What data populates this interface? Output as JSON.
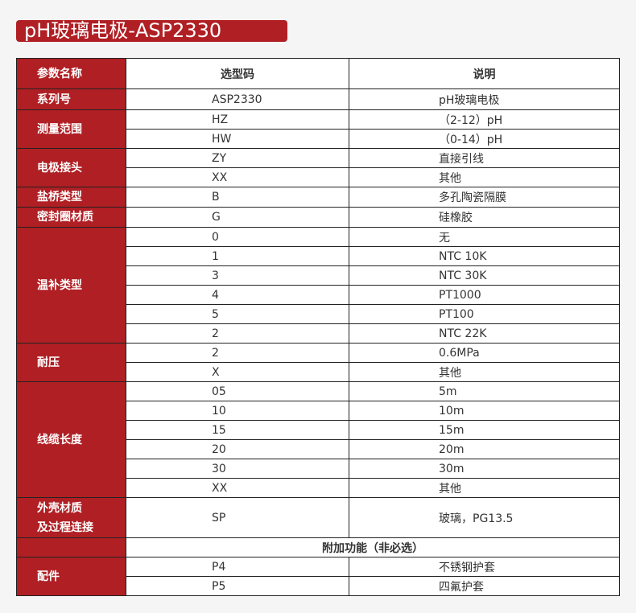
{
  "title": "pH玻璃电极-ASP2330",
  "header": {
    "param": "参数名称",
    "code": "选型码",
    "desc": "说明"
  },
  "series": {
    "label": "系列号",
    "code": "ASP2330",
    "desc": "pH玻璃电极"
  },
  "range": {
    "label": "测量范围",
    "rows": [
      [
        "HZ",
        "（2-12）pH"
      ],
      [
        "HW",
        "（0-14）pH"
      ]
    ]
  },
  "connector": {
    "label": "电极接头",
    "rows": [
      [
        "ZY",
        "直接引线"
      ],
      [
        "XX",
        "其他"
      ]
    ]
  },
  "bridge": {
    "label": "盐桥类型",
    "code": "B",
    "desc": "多孔陶瓷隔膜"
  },
  "seal": {
    "label": "密封圈材质",
    "code": "G",
    "desc": "硅橡胶"
  },
  "temp": {
    "label": "温补类型",
    "rows": [
      [
        "0",
        "无"
      ],
      [
        "1",
        "NTC 10K"
      ],
      [
        "3",
        "NTC 30K"
      ],
      [
        "4",
        "PT1000"
      ],
      [
        "5",
        "PT100"
      ],
      [
        "2",
        "NTC 22K"
      ]
    ]
  },
  "pressure": {
    "label": "耐压",
    "rows": [
      [
        "2",
        "0.6MPa"
      ],
      [
        "X",
        "其他"
      ]
    ]
  },
  "cable": {
    "label": "线缆长度",
    "rows": [
      [
        "05",
        "5m"
      ],
      [
        "10",
        "10m"
      ],
      [
        "15",
        "15m"
      ],
      [
        "20",
        "20m"
      ],
      [
        "30",
        "30m"
      ],
      [
        "XX",
        "其他"
      ]
    ]
  },
  "shell": {
    "label_line1": "外壳材质",
    "label_line2": "及过程连接",
    "code": "SP",
    "desc": "玻璃，PG13.5"
  },
  "extra": {
    "label": "附加功能（非必选）"
  },
  "accessory": {
    "label": "配件",
    "rows": [
      [
        "P4",
        "不锈钢护套"
      ],
      [
        "P5",
        "四氟护套"
      ]
    ]
  }
}
